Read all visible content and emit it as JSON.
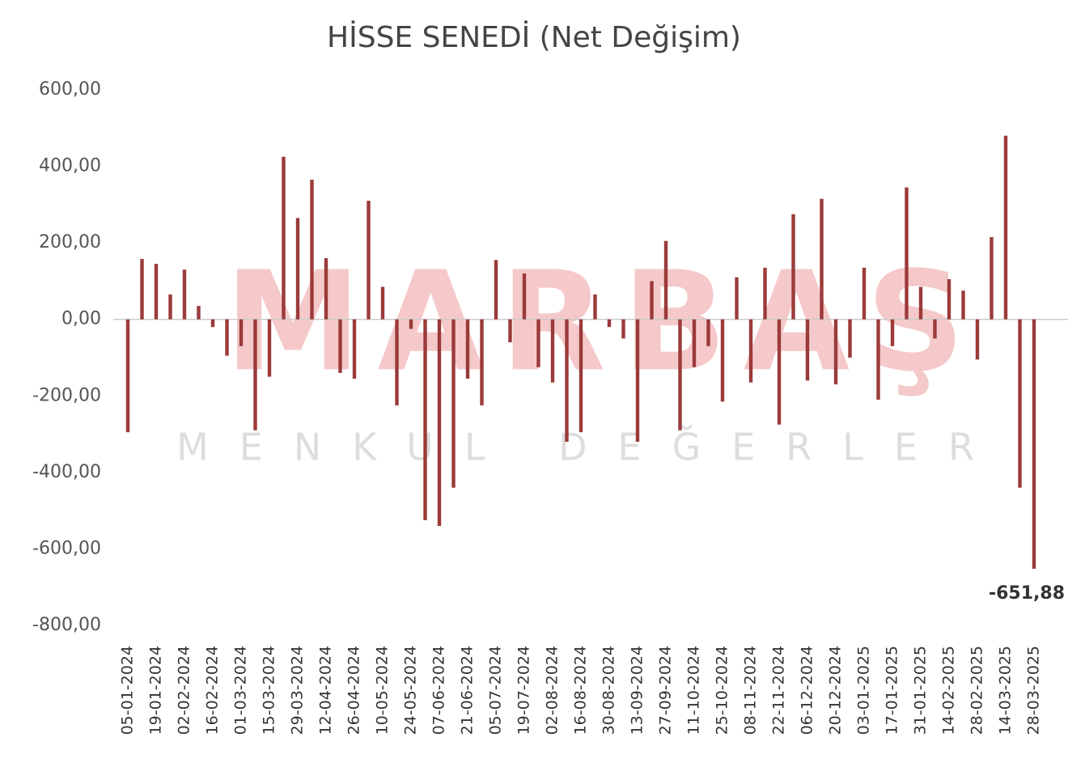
{
  "chart_data": {
    "type": "bar",
    "title": "HİSSE SENEDİ (Net Değişim)",
    "watermark": [
      "MARBAŞ",
      "MENKUL DEĞERLER"
    ],
    "color": "#9b3a3a",
    "categories": [
      "05-01-2024",
      null,
      "19-01-2024",
      null,
      "02-02-2024",
      null,
      "16-02-2024",
      null,
      "01-03-2024",
      null,
      "15-03-2024",
      null,
      "29-03-2024",
      null,
      "12-04-2024",
      null,
      "26-04-2024",
      null,
      "10-05-2024",
      null,
      "24-05-2024",
      null,
      "07-06-2024",
      null,
      "21-06-2024",
      null,
      "05-07-2024",
      null,
      "19-07-2024",
      null,
      "02-08-2024",
      null,
      "16-08-2024",
      null,
      "30-08-2024",
      null,
      "13-09-2024",
      null,
      "27-09-2024",
      null,
      "11-10-2024",
      null,
      "25-10-2024",
      null,
      "08-11-2024",
      null,
      "22-11-2024",
      null,
      "06-12-2024",
      null,
      "20-12-2024",
      null,
      "03-01-2025",
      null,
      "17-01-2025",
      null,
      "31-01-2025",
      null,
      "14-02-2025",
      null,
      "28-02-2025",
      null,
      "14-03-2025",
      null,
      "28-03-2025"
    ],
    "values": [
      -295,
      158,
      145,
      65,
      130,
      35,
      -20,
      -95,
      -70,
      -290,
      -150,
      425,
      265,
      365,
      160,
      -140,
      -155,
      310,
      85,
      -225,
      -25,
      -525,
      -540,
      -440,
      -155,
      -225,
      155,
      -60,
      120,
      -125,
      -165,
      -320,
      -295,
      65,
      -20,
      -50,
      -320,
      100,
      205,
      -290,
      -125,
      -70,
      -215,
      110,
      -165,
      135,
      -275,
      275,
      -160,
      315,
      -170,
      -100,
      135,
      -210,
      -70,
      345,
      85,
      -50,
      105,
      75,
      -105,
      215,
      480,
      -440,
      -651.88
    ],
    "value_labels": [
      null,
      null,
      null,
      null,
      null,
      null,
      null,
      null,
      null,
      null,
      null,
      null,
      null,
      null,
      null,
      null,
      null,
      null,
      null,
      null,
      null,
      null,
      null,
      null,
      null,
      null,
      null,
      null,
      null,
      null,
      null,
      null,
      null,
      null,
      null,
      null,
      null,
      null,
      null,
      null,
      null,
      null,
      null,
      null,
      null,
      null,
      null,
      null,
      null,
      null,
      null,
      null,
      null,
      null,
      null,
      null,
      null,
      null,
      null,
      null,
      null,
      null,
      null,
      null,
      "-651,88"
    ],
    "ylim": [
      -800,
      600
    ],
    "yticks": [
      {
        "value": 600,
        "label": "600,00"
      },
      {
        "value": 400,
        "label": "400,00"
      },
      {
        "value": 200,
        "label": "200,00"
      },
      {
        "value": 0,
        "label": "0,00"
      },
      {
        "value": -200,
        "label": "-200,00"
      },
      {
        "value": -400,
        "label": "-400,00"
      },
      {
        "value": -600,
        "label": "-600,00"
      },
      {
        "value": -800,
        "label": "-800,00"
      }
    ],
    "grid": false
  }
}
